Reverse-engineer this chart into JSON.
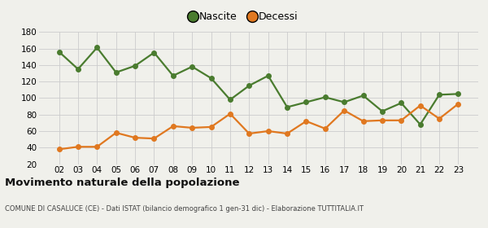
{
  "years": [
    "02",
    "03",
    "04",
    "05",
    "06",
    "07",
    "08",
    "09",
    "10",
    "11",
    "12",
    "13",
    "14",
    "15",
    "16",
    "17",
    "18",
    "19",
    "20",
    "21",
    "22",
    "23"
  ],
  "nascite": [
    156,
    135,
    161,
    131,
    139,
    155,
    127,
    138,
    124,
    98,
    115,
    127,
    89,
    95,
    101,
    95,
    103,
    84,
    94,
    68,
    104,
    105
  ],
  "decessi": [
    38,
    41,
    41,
    58,
    52,
    51,
    66,
    64,
    65,
    81,
    57,
    60,
    57,
    72,
    63,
    85,
    72,
    73,
    73,
    91,
    75,
    93
  ],
  "nascite_color": "#4a7c2f",
  "decessi_color": "#e07820",
  "background_color": "#f0f0eb",
  "grid_color": "#cccccc",
  "ylim": [
    20,
    180
  ],
  "yticks": [
    20,
    40,
    60,
    80,
    100,
    120,
    140,
    160,
    180
  ],
  "title": "Movimento naturale della popolazione",
  "subtitle": "COMUNE DI CASALUCE (CE) - Dati ISTAT (bilancio demografico 1 gen-31 dic) - Elaborazione TUTTITALIA.IT",
  "legend_nascite": "Nascite",
  "legend_decessi": "Decessi",
  "marker_size": 4,
  "line_width": 1.6
}
